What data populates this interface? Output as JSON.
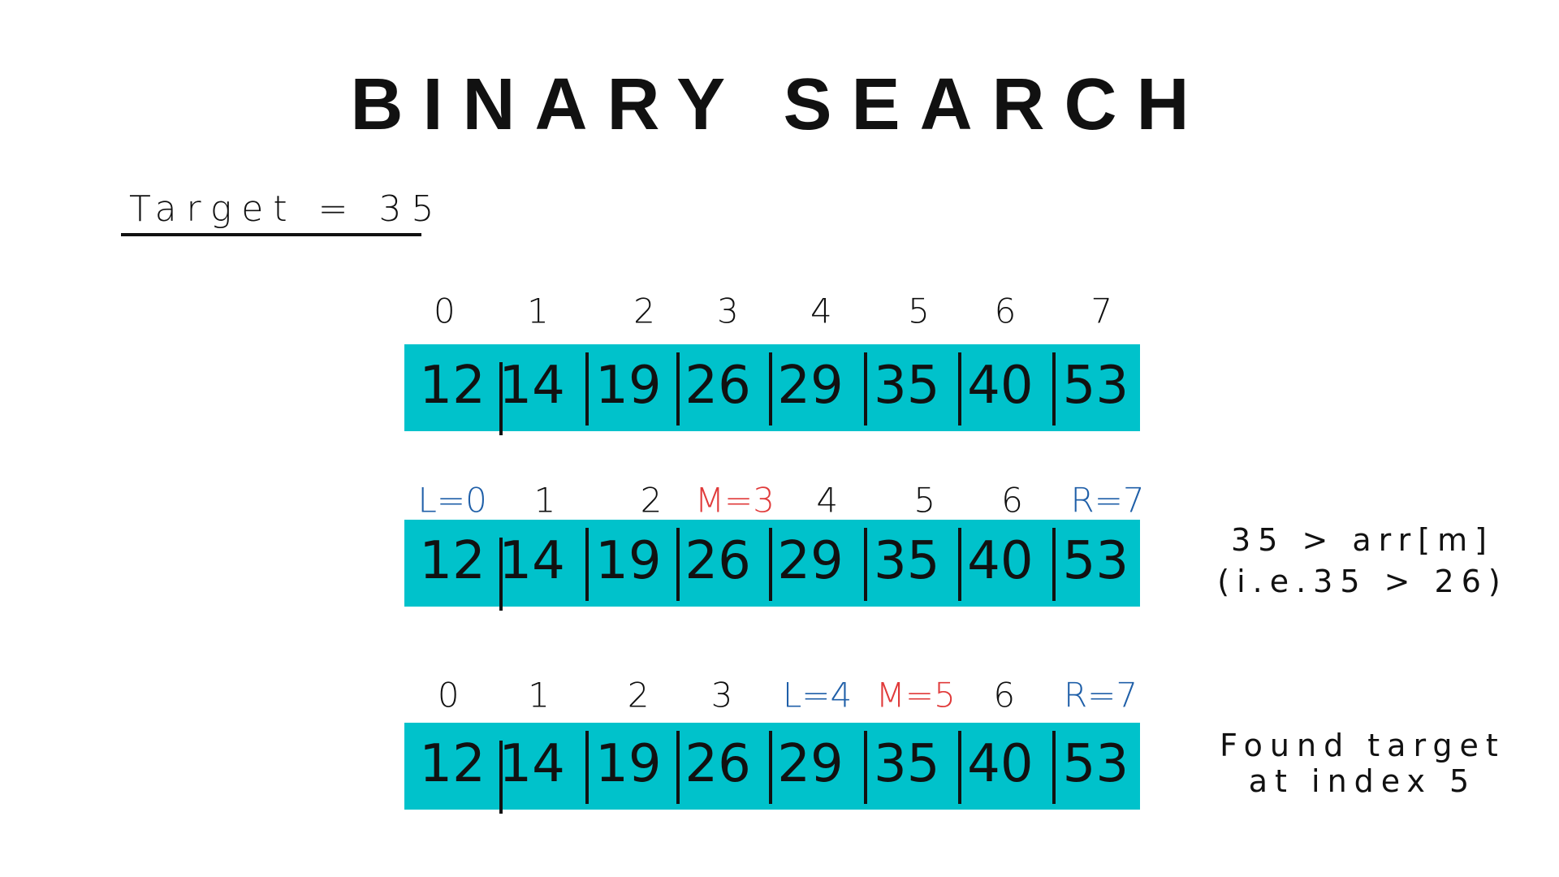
{
  "title": "BINARY SEARCH",
  "target_label": "Target = 35",
  "array": [
    "12",
    "14",
    "19",
    "26",
    "29",
    "35",
    "40",
    "53"
  ],
  "colors": {
    "cell_bg": "#00C2CB",
    "pointer_lr": "#1F5FA8",
    "pointer_m": "#E03A3A"
  },
  "rows": [
    {
      "indices": [
        {
          "t": "0"
        },
        {
          "t": "1"
        },
        {
          "t": "2"
        },
        {
          "t": "3"
        },
        {
          "t": "4"
        },
        {
          "t": "5"
        },
        {
          "t": "6"
        },
        {
          "t": "7"
        }
      ],
      "notes": []
    },
    {
      "indices": [
        {
          "t": "L=0",
          "c": "lr"
        },
        {
          "t": "1"
        },
        {
          "t": "2"
        },
        {
          "t": "M=3",
          "c": "m"
        },
        {
          "t": "4"
        },
        {
          "t": "5"
        },
        {
          "t": "6"
        },
        {
          "t": "R=7",
          "c": "lr"
        }
      ],
      "notes": [
        "35 > arr[m]",
        "(i.e.35 > 26)"
      ]
    },
    {
      "indices": [
        {
          "t": "0"
        },
        {
          "t": "1"
        },
        {
          "t": "2"
        },
        {
          "t": "3"
        },
        {
          "t": "L=4",
          "c": "lr"
        },
        {
          "t": "M=5",
          "c": "m"
        },
        {
          "t": "6"
        },
        {
          "t": "R=7",
          "c": "lr"
        }
      ],
      "notes": [
        "Found target",
        "at index 5"
      ]
    }
  ]
}
